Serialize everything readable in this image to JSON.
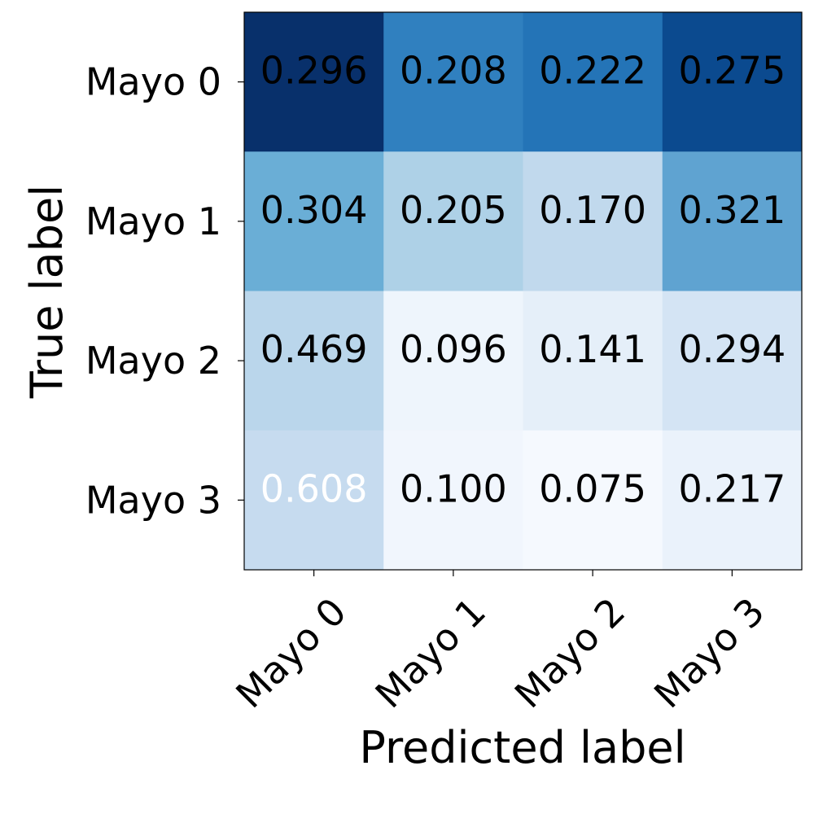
{
  "chart_data": {
    "type": "heatmap",
    "title": "",
    "xlabel": "Predicted label",
    "ylabel": "True label",
    "x_categories": [
      "Mayo 0",
      "Mayo 1",
      "Mayo 2",
      "Mayo 3"
    ],
    "y_categories": [
      "Mayo 0",
      "Mayo 1",
      "Mayo 2",
      "Mayo 3"
    ],
    "values": [
      [
        0.296,
        0.208,
        0.222,
        0.275
      ],
      [
        0.304,
        0.205,
        0.17,
        0.321
      ],
      [
        0.469,
        0.096,
        0.141,
        0.294
      ],
      [
        0.608,
        0.1,
        0.075,
        0.217
      ]
    ],
    "value_labels": [
      [
        "0.296",
        "0.208",
        "0.222",
        "0.275"
      ],
      [
        "0.304",
        "0.205",
        "0.170",
        "0.321"
      ],
      [
        "0.469",
        "0.096",
        "0.141",
        "0.294"
      ],
      [
        "0.608",
        "0.100",
        "0.075",
        "0.217"
      ]
    ],
    "cell_colors": [
      [
        "#08306b",
        "#3080bf",
        "#2474b7",
        "#0b4a8f"
      ],
      [
        "#6aaed6",
        "#aed1e7",
        "#c1d9ed",
        "#5fa3d1"
      ],
      [
        "#bad6eb",
        "#eef5fc",
        "#e5eff9",
        "#d4e4f4"
      ],
      [
        "#c6dbef",
        "#f1f6fd",
        "#f5f9fe",
        "#eaf2fb"
      ]
    ],
    "text_colors": [
      [
        "#000000",
        "#000000",
        "#000000",
        "#000000"
      ],
      [
        "#000000",
        "#000000",
        "#000000",
        "#000000"
      ],
      [
        "#000000",
        "#000000",
        "#000000",
        "#000000"
      ],
      [
        "#ffffff",
        "#000000",
        "#000000",
        "#000000"
      ]
    ],
    "colormap": "Blues",
    "grid": false,
    "legend": "none"
  }
}
